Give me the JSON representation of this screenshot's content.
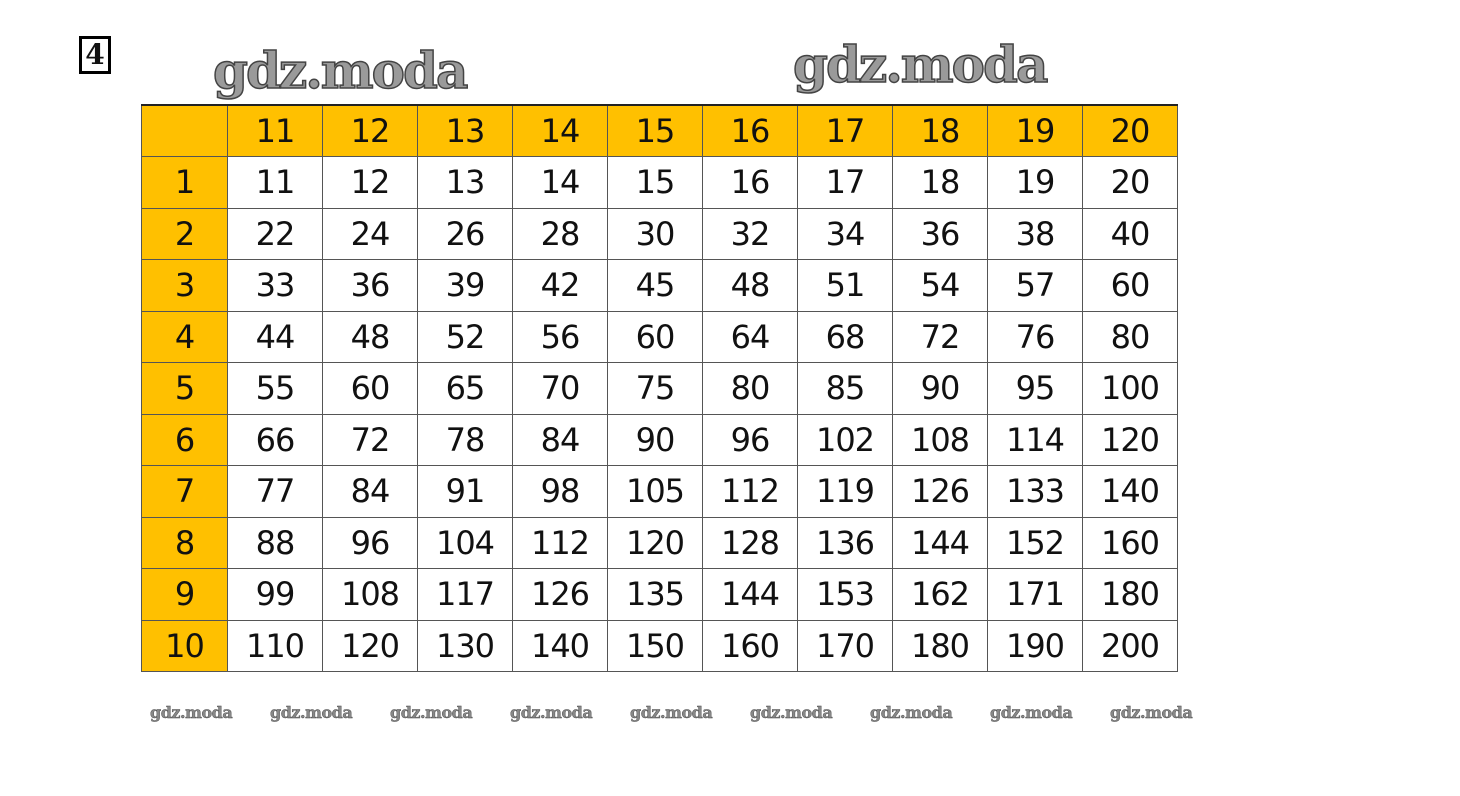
{
  "task_number": "4",
  "watermarks": {
    "large": [
      "gdz.moda",
      "gdz.moda"
    ],
    "small": [
      "gdz.moda",
      "gdz.moda",
      "gdz.moda",
      "gdz.moda",
      "gdz.moda",
      "gdz.moda",
      "gdz.moda",
      "gdz.moda",
      "gdz.moda"
    ]
  },
  "colors": {
    "header_fill": "#FFC000"
  },
  "table": {
    "corner": "",
    "column_headers": [
      "11",
      "12",
      "13",
      "14",
      "15",
      "16",
      "17",
      "18",
      "19",
      "20"
    ],
    "rows": [
      {
        "label": "1",
        "values": [
          "11",
          "12",
          "13",
          "14",
          "15",
          "16",
          "17",
          "18",
          "19",
          "20"
        ]
      },
      {
        "label": "2",
        "values": [
          "22",
          "24",
          "26",
          "28",
          "30",
          "32",
          "34",
          "36",
          "38",
          "40"
        ]
      },
      {
        "label": "3",
        "values": [
          "33",
          "36",
          "39",
          "42",
          "45",
          "48",
          "51",
          "54",
          "57",
          "60"
        ]
      },
      {
        "label": "4",
        "values": [
          "44",
          "48",
          "52",
          "56",
          "60",
          "64",
          "68",
          "72",
          "76",
          "80"
        ]
      },
      {
        "label": "5",
        "values": [
          "55",
          "60",
          "65",
          "70",
          "75",
          "80",
          "85",
          "90",
          "95",
          "100"
        ]
      },
      {
        "label": "6",
        "values": [
          "66",
          "72",
          "78",
          "84",
          "90",
          "96",
          "102",
          "108",
          "114",
          "120"
        ]
      },
      {
        "label": "7",
        "values": [
          "77",
          "84",
          "91",
          "98",
          "105",
          "112",
          "119",
          "126",
          "133",
          "140"
        ]
      },
      {
        "label": "8",
        "values": [
          "88",
          "96",
          "104",
          "112",
          "120",
          "128",
          "136",
          "144",
          "152",
          "160"
        ]
      },
      {
        "label": "9",
        "values": [
          "99",
          "108",
          "117",
          "126",
          "135",
          "144",
          "153",
          "162",
          "171",
          "180"
        ]
      },
      {
        "label": "10",
        "values": [
          "110",
          "120",
          "130",
          "140",
          "150",
          "160",
          "170",
          "180",
          "190",
          "200"
        ]
      }
    ]
  }
}
